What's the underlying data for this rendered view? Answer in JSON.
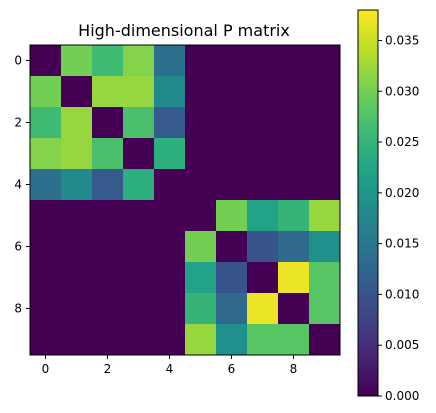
{
  "chart_data": [
    {
      "type": "heatmap",
      "title": "High-dimensional P matrix",
      "xlabel": "",
      "ylabel": "",
      "x_ticks": [
        "0",
        "2",
        "4",
        "6",
        "8"
      ],
      "y_ticks": [
        "0",
        "2",
        "4",
        "6",
        "8"
      ],
      "tick_positions": [
        0,
        2,
        4,
        6,
        8
      ],
      "n_rows": 10,
      "n_cols": 10,
      "colormap": "viridis",
      "vmin": 0,
      "vmax": 0.038,
      "colorbar_ticks": [
        "0.000",
        "0.005",
        "0.010",
        "0.015",
        "0.020",
        "0.025",
        "0.030",
        "0.035"
      ],
      "colorbar_tick_values": [
        0,
        0.005,
        0.01,
        0.015,
        0.02,
        0.025,
        0.03,
        0.035
      ],
      "values": [
        [
          0.0,
          0.03,
          0.026,
          0.031,
          0.014,
          0.0,
          0.0,
          0.0,
          0.0,
          0.0
        ],
        [
          0.03,
          0.0,
          0.032,
          0.032,
          0.018,
          0.0,
          0.0,
          0.0,
          0.0,
          0.0
        ],
        [
          0.026,
          0.032,
          0.0,
          0.027,
          0.011,
          0.0,
          0.0,
          0.0,
          0.0,
          0.0
        ],
        [
          0.031,
          0.032,
          0.027,
          0.0,
          0.024,
          0.0,
          0.0,
          0.0,
          0.0,
          0.0
        ],
        [
          0.014,
          0.018,
          0.011,
          0.024,
          0.0,
          0.0,
          0.0,
          0.0,
          0.0,
          0.0
        ],
        [
          0.0,
          0.0,
          0.0,
          0.0,
          0.0,
          0.0,
          0.03,
          0.022,
          0.025,
          0.032
        ],
        [
          0.0,
          0.0,
          0.0,
          0.0,
          0.0,
          0.03,
          0.0,
          0.01,
          0.013,
          0.019
        ],
        [
          0.0,
          0.0,
          0.0,
          0.0,
          0.0,
          0.022,
          0.01,
          0.0,
          0.037,
          0.028
        ],
        [
          0.0,
          0.0,
          0.0,
          0.0,
          0.0,
          0.025,
          0.013,
          0.037,
          0.0,
          0.028
        ],
        [
          0.0,
          0.0,
          0.0,
          0.0,
          0.0,
          0.032,
          0.019,
          0.028,
          0.028,
          0.0
        ]
      ]
    }
  ]
}
